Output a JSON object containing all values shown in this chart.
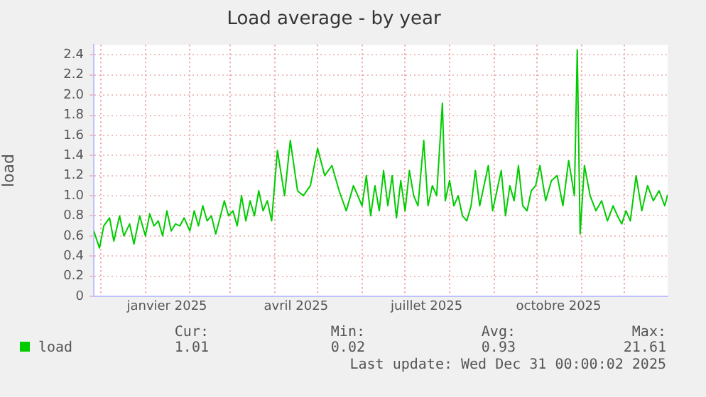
{
  "chart_data": {
    "type": "line",
    "title": "Load average - by year",
    "ylabel": "load",
    "x": [
      "2024-11-26",
      "2024-11-30",
      "2024-12-03",
      "2024-12-07",
      "2024-12-10",
      "2024-12-14",
      "2024-12-17",
      "2024-12-21",
      "2024-12-24",
      "2024-12-28",
      "2025-01-01",
      "2025-01-04",
      "2025-01-07",
      "2025-01-10",
      "2025-01-13",
      "2025-01-16",
      "2025-01-19",
      "2025-01-22",
      "2025-01-25",
      "2025-01-28",
      "2025-02-01",
      "2025-02-04",
      "2025-02-07",
      "2025-02-10",
      "2025-02-13",
      "2025-02-16",
      "2025-02-19",
      "2025-02-22",
      "2025-02-25",
      "2025-02-28",
      "2025-03-03",
      "2025-03-06",
      "2025-03-09",
      "2025-03-12",
      "2025-03-15",
      "2025-03-18",
      "2025-03-21",
      "2025-03-24",
      "2025-03-27",
      "2025-03-30",
      "2025-04-03",
      "2025-04-08",
      "2025-04-12",
      "2025-04-17",
      "2025-04-21",
      "2025-04-26",
      "2025-05-01",
      "2025-05-06",
      "2025-05-11",
      "2025-05-16",
      "2025-05-21",
      "2025-05-26",
      "2025-06-01",
      "2025-06-04",
      "2025-06-07",
      "2025-06-10",
      "2025-06-13",
      "2025-06-16",
      "2025-06-19",
      "2025-06-22",
      "2025-06-25",
      "2025-06-28",
      "2025-07-01",
      "2025-07-04",
      "2025-07-07",
      "2025-07-10",
      "2025-07-14",
      "2025-07-17",
      "2025-07-20",
      "2025-07-23",
      "2025-07-27",
      "2025-07-29",
      "2025-08-01",
      "2025-08-04",
      "2025-08-07",
      "2025-08-10",
      "2025-08-13",
      "2025-08-16",
      "2025-08-19",
      "2025-08-22",
      "2025-08-25",
      "2025-08-28",
      "2025-08-31",
      "2025-09-03",
      "2025-09-06",
      "2025-09-09",
      "2025-09-12",
      "2025-09-15",
      "2025-09-18",
      "2025-09-21",
      "2025-09-24",
      "2025-09-27",
      "2025-09-30",
      "2025-10-03",
      "2025-10-07",
      "2025-10-11",
      "2025-10-15",
      "2025-10-19",
      "2025-10-23",
      "2025-10-27",
      "2025-10-29",
      "2025-10-31",
      "2025-11-03",
      "2025-11-07",
      "2025-11-11",
      "2025-11-15",
      "2025-11-19",
      "2025-11-23",
      "2025-11-26",
      "2025-11-29",
      "2025-12-02",
      "2025-12-05",
      "2025-12-09",
      "2025-12-13",
      "2025-12-17",
      "2025-12-21",
      "2025-12-25",
      "2025-12-29",
      "2025-12-31"
    ],
    "series": [
      {
        "name": "load",
        "color": "#00cc00",
        "values": [
          0.65,
          0.48,
          0.7,
          0.78,
          0.55,
          0.8,
          0.6,
          0.72,
          0.52,
          0.8,
          0.6,
          0.82,
          0.7,
          0.75,
          0.6,
          0.85,
          0.65,
          0.72,
          0.7,
          0.78,
          0.65,
          0.85,
          0.7,
          0.9,
          0.75,
          0.8,
          0.62,
          0.78,
          0.95,
          0.8,
          0.85,
          0.7,
          1.0,
          0.75,
          0.95,
          0.8,
          1.05,
          0.85,
          0.95,
          0.75,
          1.45,
          1.0,
          1.55,
          1.05,
          1.0,
          1.1,
          1.47,
          1.2,
          1.3,
          1.05,
          0.85,
          1.1,
          0.9,
          1.2,
          0.8,
          1.1,
          0.85,
          1.25,
          0.9,
          1.2,
          0.78,
          1.15,
          0.85,
          1.25,
          1.0,
          0.9,
          1.55,
          0.9,
          1.1,
          1.0,
          1.92,
          0.95,
          1.15,
          0.9,
          1.0,
          0.8,
          0.75,
          0.9,
          1.25,
          0.9,
          1.1,
          1.3,
          0.85,
          1.05,
          1.25,
          0.8,
          1.1,
          0.95,
          1.3,
          0.9,
          0.85,
          1.05,
          1.1,
          1.3,
          0.95,
          1.15,
          1.2,
          0.9,
          1.35,
          1.0,
          2.45,
          0.62,
          1.3,
          1.0,
          0.85,
          0.95,
          0.75,
          0.9,
          0.8,
          0.72,
          0.85,
          0.75,
          1.2,
          0.85,
          1.1,
          0.95,
          1.05,
          0.9,
          1.01
        ]
      }
    ],
    "xlim": [
      "2024-11-26",
      "2025-12-31"
    ],
    "xticks": [
      {
        "value": "2024-12-01",
        "label": null
      },
      {
        "value": "2025-01-01",
        "label": null
      },
      {
        "value": "2025-01-16",
        "label": "janvier 2025"
      },
      {
        "value": "2025-02-01",
        "label": null
      },
      {
        "value": "2025-03-01",
        "label": null
      },
      {
        "value": "2025-04-01",
        "label": null
      },
      {
        "value": "2025-04-16",
        "label": "avril 2025"
      },
      {
        "value": "2025-05-01",
        "label": null
      },
      {
        "value": "2025-06-01",
        "label": null
      },
      {
        "value": "2025-07-01",
        "label": null
      },
      {
        "value": "2025-07-16",
        "label": "juillet 2025"
      },
      {
        "value": "2025-08-01",
        "label": null
      },
      {
        "value": "2025-09-01",
        "label": null
      },
      {
        "value": "2025-10-01",
        "label": null
      },
      {
        "value": "2025-10-16",
        "label": "octobre 2025"
      },
      {
        "value": "2025-11-01",
        "label": null
      },
      {
        "value": "2025-12-01",
        "label": null
      }
    ],
    "ylim": [
      0,
      2.5
    ],
    "yticks": [
      0,
      {
        "value": 0.2,
        "label": "0.2"
      },
      {
        "value": 0.4,
        "label": "0.4"
      },
      {
        "value": 0.6,
        "label": "0.6"
      },
      {
        "value": 0.8,
        "label": "0.8"
      },
      {
        "value": 1,
        "label": "1.0"
      },
      {
        "value": 1.2,
        "label": "1.2"
      },
      {
        "value": 1.4,
        "label": "1.4"
      },
      {
        "value": 1.6,
        "label": "1.6"
      },
      {
        "value": 1.8,
        "label": "1.8"
      },
      {
        "value": 2,
        "label": "2.0"
      },
      {
        "value": 2.2,
        "label": "2.2"
      },
      {
        "value": 2.4,
        "label": "2.4"
      }
    ],
    "grid": true,
    "legend": "bottom left",
    "marker": "none",
    "line_style": "solid",
    "annotations": [
      "Cur:",
      "Min:",
      "Avg:",
      "Max:",
      "1.01",
      "0.02",
      "0.93",
      "21.61",
      "Last update: Wed Dec 31 00:00:02 2025"
    ]
  }
}
